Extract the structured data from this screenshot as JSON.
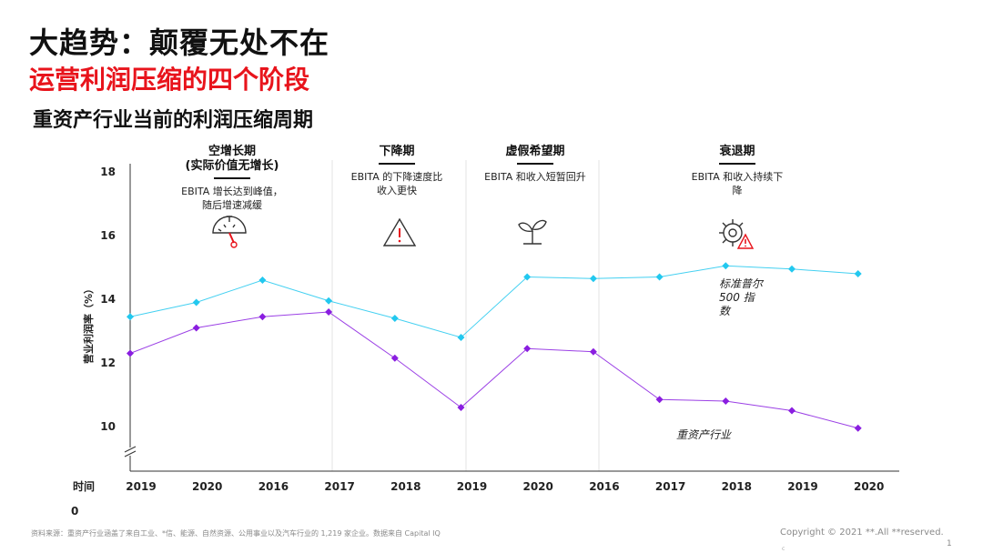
{
  "header": {
    "title": "大趋势：颠覆无处不在",
    "subtitle": "运营利润压缩的四个阶段",
    "section": "重资产行业当前的利润压缩周期"
  },
  "phases": [
    {
      "title_lines": [
        "空增长期",
        "(实际价值无增长)"
      ],
      "desc_lines": [
        "EBITA 增长达到峰值，",
        "随后增速减缓"
      ],
      "icon": "gauge-icon"
    },
    {
      "title_lines": [
        "下降期"
      ],
      "desc_lines": [
        "EBITA 的下降速度比",
        "收入更快"
      ],
      "icon": "warning-icon"
    },
    {
      "title_lines": [
        "虚假希望期"
      ],
      "desc_lines": [
        "EBITA 和收入短暂回升"
      ],
      "icon": "sprout-icon"
    },
    {
      "title_lines": [
        "衰退期"
      ],
      "desc_lines": [
        "EBITA 和收入持续下",
        "降"
      ],
      "icon": "gear-warning-icon"
    }
  ],
  "chart_data": {
    "type": "line",
    "categories": [
      "2019",
      "2020",
      "2016",
      "2017",
      "2018",
      "2019",
      "2020",
      "2016",
      "2017",
      "2018",
      "2019",
      "2020"
    ],
    "series": [
      {
        "name": "标准普尔500指数",
        "label_lines": [
          "标准普尔",
          "500 指",
          "数"
        ],
        "color": "#22c8ef",
        "values": [
          13.45,
          13.9,
          14.6,
          13.95,
          13.4,
          12.8,
          14.7,
          14.65,
          14.7,
          15.05,
          14.95,
          14.8
        ]
      },
      {
        "name": "重资产行业",
        "label_lines": [
          "重资产行业"
        ],
        "color": "#8a1ee0",
        "values": [
          12.3,
          13.1,
          13.45,
          13.6,
          12.15,
          10.6,
          12.45,
          12.35,
          10.85,
          10.8,
          10.5,
          9.95
        ]
      }
    ],
    "ylabel": "营业利润率（%）",
    "xlabel": "时间",
    "x_axis_zero": "0",
    "yticks": [
      10,
      12,
      14,
      16,
      18
    ],
    "ylim": [
      9,
      18
    ]
  },
  "footer": {
    "source": "资料来源：重资产行业涵盖了来自工业、*信、能源、自然资源、公用事业以及汽车行业的 1,219 家企业。数据来自 Capital IQ",
    "copyright": "Copyright © 2021 **.All **reserved.",
    "page": "1",
    "extra": "c"
  }
}
